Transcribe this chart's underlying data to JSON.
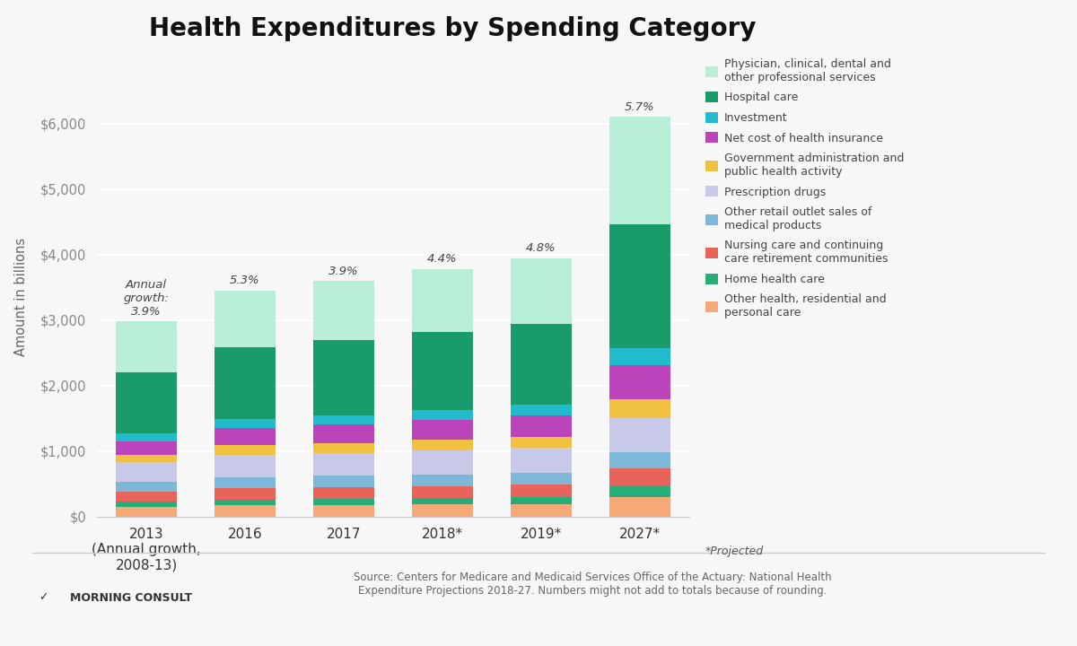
{
  "title": "Health Expenditures by Spending Category",
  "ylabel": "Amount in billions",
  "categories": [
    "2013\n(Annual growth,\n2008-13)",
    "2016",
    "2017",
    "2018*",
    "2019*",
    "2027*"
  ],
  "annual_growth_labels": [
    "Annual\ngrowth:\n3.9%",
    "5.3%",
    "3.9%",
    "4.4%",
    "4.8%",
    "5.7%"
  ],
  "series": [
    {
      "label": "Other health, residential and\npersonal care",
      "color": "#F5A878",
      "values": [
        148,
        172,
        179,
        186,
        194,
        296
      ]
    },
    {
      "label": "Home health care",
      "color": "#27AE78",
      "values": [
        79,
        91,
        96,
        101,
        107,
        176
      ]
    },
    {
      "label": "Nursing care and continuing\ncare retirement communities",
      "color": "#E8635A",
      "values": [
        156,
        170,
        175,
        180,
        186,
        263
      ]
    },
    {
      "label": "Other retail outlet sales of\nmedical products",
      "color": "#7EB8D9",
      "values": [
        155,
        174,
        178,
        183,
        188,
        253
      ]
    },
    {
      "label": "Prescription drugs",
      "color": "#C8C8E8",
      "values": [
        298,
        338,
        344,
        360,
        372,
        516
      ]
    },
    {
      "label": "Government administration and\npublic health activity",
      "color": "#F0C040",
      "values": [
        112,
        147,
        155,
        165,
        175,
        292
      ]
    },
    {
      "label": "Net cost of health insurance",
      "color": "#BB44BB",
      "values": [
        204,
        261,
        280,
        302,
        325,
        510
      ]
    },
    {
      "label": "Investment",
      "color": "#22BBCC",
      "values": [
        120,
        137,
        143,
        154,
        161,
        264
      ]
    },
    {
      "label": "Hospital care",
      "color": "#1A9B6C",
      "values": [
        936,
        1095,
        1142,
        1192,
        1240,
        1890
      ]
    },
    {
      "label": "Physician, clinical, dental and\nother professional services",
      "color": "#B8EDD8",
      "values": [
        769,
        868,
        905,
        958,
        1000,
        1640
      ]
    }
  ],
  "ylim": [
    0,
    6700
  ],
  "yticks": [
    0,
    1000,
    2000,
    3000,
    4000,
    5000,
    6000
  ],
  "ytick_labels": [
    "$0",
    "$1,000",
    "$2,000",
    "$3,000",
    "$4,000",
    "$5,000",
    "$6,000"
  ],
  "background_color": "#F7F7F7",
  "grid_color": "#FFFFFF",
  "source_text": "Source: Centers for Medicare and Medicaid Services Office of the Actuary: National Health\nExpenditure Projections 2018-27. Numbers might not add to totals because of rounding.",
  "projected_text": "*Projected",
  "logo_text": "MORNING CONSULT"
}
